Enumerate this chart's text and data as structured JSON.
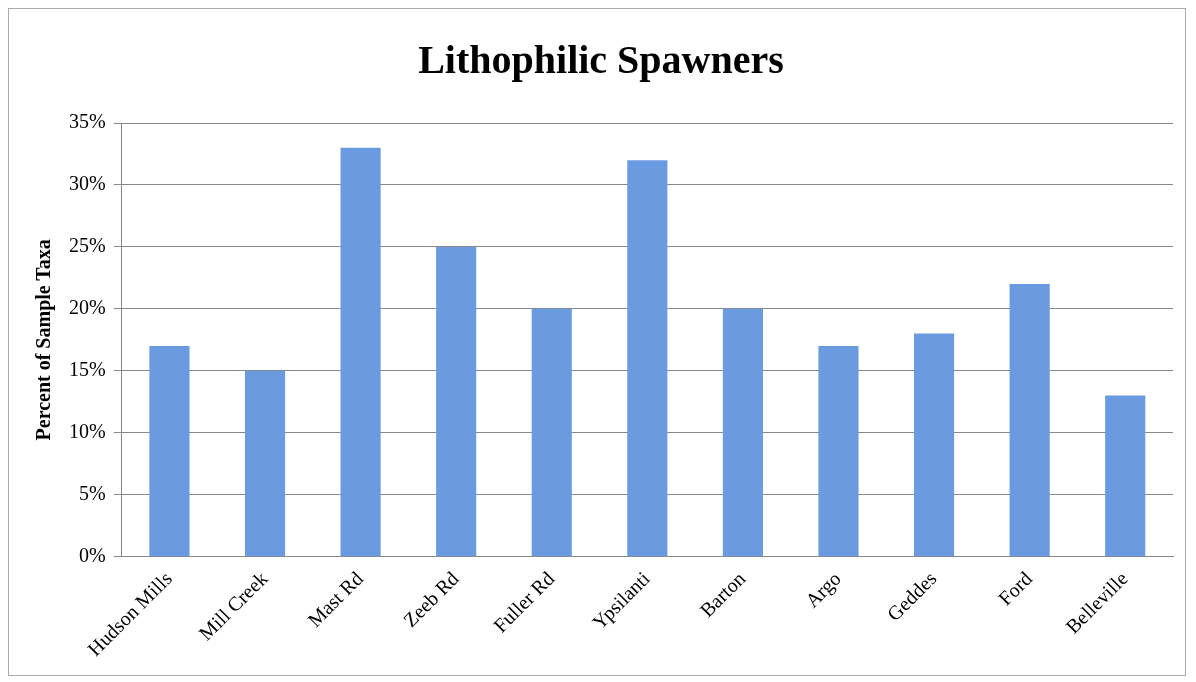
{
  "chart_data": {
    "type": "bar",
    "title": "Lithophilic Spawners",
    "ylabel": "Percent of Sample Taxa",
    "categories": [
      "Hudson Mills",
      "Mill Creek",
      "Mast Rd",
      "Zeeb Rd",
      "Fuller Rd",
      "Ypsilanti",
      "Barton",
      "Argo",
      "Geddes",
      "Ford",
      "Belleville"
    ],
    "values": [
      17,
      15,
      33,
      25,
      20,
      32,
      20,
      17,
      18,
      22,
      13
    ],
    "color": "#6a9be0",
    "ylim": [
      0,
      35
    ],
    "yticks": [
      {
        "value": 0,
        "label": "0%"
      },
      {
        "value": 5,
        "label": "5%"
      },
      {
        "value": 10,
        "label": "10%"
      },
      {
        "value": 15,
        "label": "15%"
      },
      {
        "value": 20,
        "label": "20%"
      },
      {
        "value": 25,
        "label": "25%"
      },
      {
        "value": 30,
        "label": "30%"
      },
      {
        "value": 35,
        "label": "35%"
      }
    ],
    "grid": "y",
    "legend": false
  }
}
